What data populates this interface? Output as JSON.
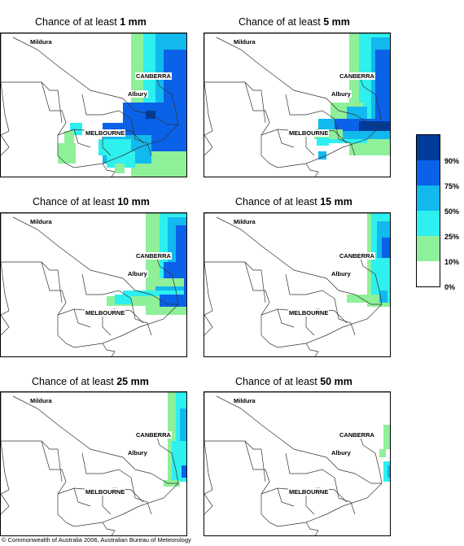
{
  "panels": [
    {
      "title_prefix": "Chance of at least ",
      "amount": "1 mm",
      "level": 5
    },
    {
      "title_prefix": "Chance of at least ",
      "amount": "5 mm",
      "level": 4
    },
    {
      "title_prefix": "Chance of at least ",
      "amount": "10 mm",
      "level": 3
    },
    {
      "title_prefix": "Chance of at least ",
      "amount": "15 mm",
      "level": 2
    },
    {
      "title_prefix": "Chance of at least ",
      "amount": "25 mm",
      "level": 1
    },
    {
      "title_prefix": "Chance of at least ",
      "amount": "50 mm",
      "level": 0
    }
  ],
  "cities": {
    "mildura": "Mildura",
    "canberra": "CANBERRA",
    "albury": "Albury",
    "melbourne": "MELBOURNE"
  },
  "legend": {
    "labels": [
      "90%",
      "75%",
      "50%",
      "25%",
      "10%",
      "0%"
    ],
    "colors": [
      "#003b99",
      "#0a62e8",
      "#12b9ee",
      "#2ef0ee",
      "#8ff09a",
      "#ffffff"
    ]
  },
  "copyright": "© Commonwealth of Australia 2006, Australian Bureau of Meteorology"
}
